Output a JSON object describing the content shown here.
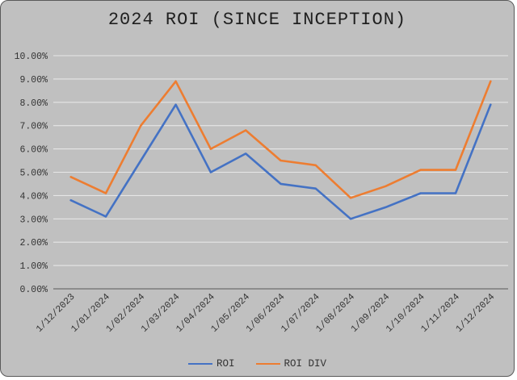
{
  "title": "2024 ROI (SINCE INCEPTION)",
  "colors": {
    "background": "#c0c0c0",
    "frame_border": "#595959",
    "gridline": "#e6e6e6",
    "axis_line": "#6e6e6e",
    "title_text": "#1f1f1f",
    "label_text": "#333333"
  },
  "chart_data": {
    "type": "line",
    "title": "2024 ROI (SINCE INCEPTION)",
    "categories": [
      "1/12/2023",
      "1/01/2024",
      "1/02/2024",
      "1/03/2024",
      "1/04/2024",
      "1/05/2024",
      "1/06/2024",
      "1/07/2024",
      "1/08/2024",
      "1/09/2024",
      "1/10/2024",
      "1/11/2024",
      "1/12/2024"
    ],
    "series": [
      {
        "name": "ROI",
        "color": "#4472C4",
        "values": [
          3.8,
          3.1,
          5.5,
          7.9,
          5.0,
          5.8,
          4.5,
          4.3,
          3.0,
          3.5,
          4.1,
          4.1,
          7.9
        ]
      },
      {
        "name": "ROI DIV",
        "color": "#ED7D31",
        "values": [
          4.8,
          4.1,
          7.0,
          8.9,
          6.0,
          6.8,
          5.5,
          5.3,
          3.9,
          4.4,
          5.1,
          5.1,
          8.9
        ]
      }
    ],
    "xlabel": "",
    "ylabel": "",
    "ylim": [
      0,
      10
    ],
    "ytick_labels": [
      "0.00%",
      "1.00%",
      "2.00%",
      "3.00%",
      "4.00%",
      "5.00%",
      "6.00%",
      "7.00%",
      "8.00%",
      "9.00%",
      "10.00%"
    ],
    "grid": true,
    "legend_position": "bottom-center",
    "x_label_rotation_deg": 45
  }
}
